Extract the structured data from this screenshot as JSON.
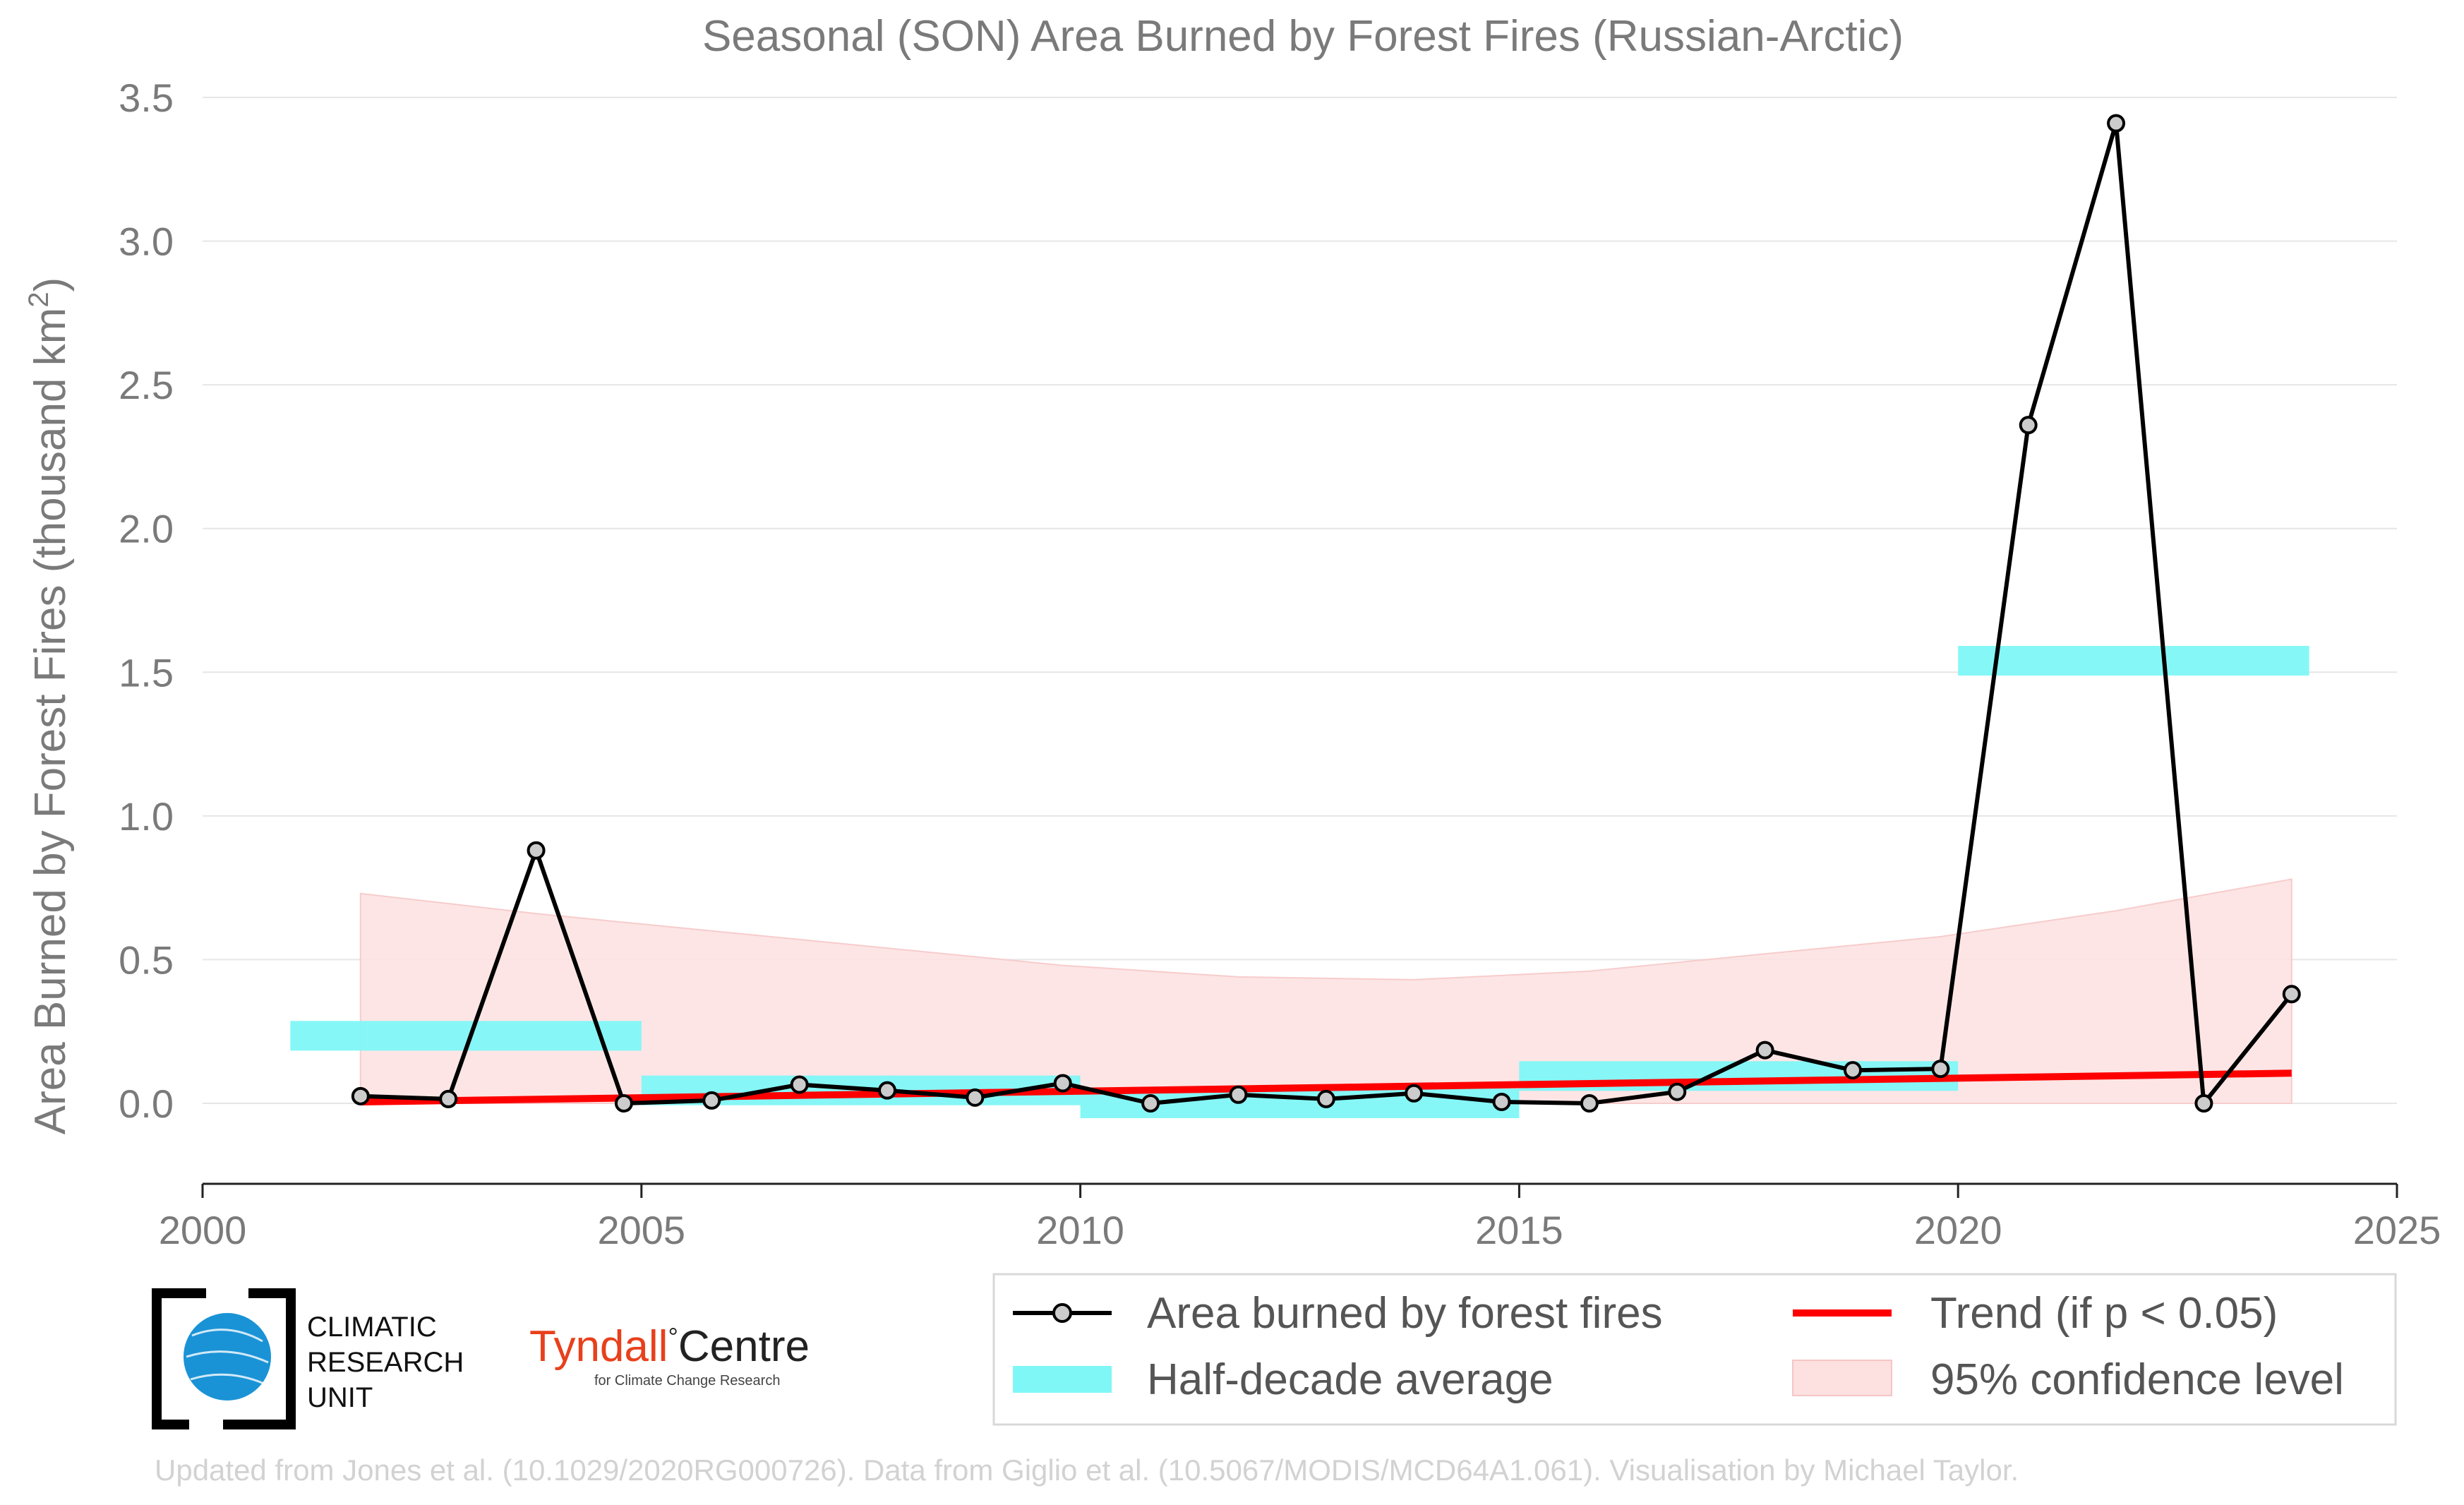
{
  "chart_data": {
    "type": "line",
    "title": "Seasonal (SON) Area Burned by Forest Fires (Russian-Arctic)",
    "ylabel": "Area Burned by Forest Fires (thousand km²)",
    "ylabel_main": "Area Burned by Forest Fires (thousand km",
    "ylabel_sup": "2",
    "ylabel_close": ")",
    "xlim": [
      2000,
      2025
    ],
    "ylim": [
      -0.28,
      3.5
    ],
    "x_ticks": [
      "2000",
      "2005",
      "2010",
      "2015",
      "2020",
      "2025"
    ],
    "y_ticks": [
      "0.0",
      "0.5",
      "1.0",
      "1.5",
      "2.0",
      "2.5",
      "3.0",
      "3.5"
    ],
    "grid": "horizontal",
    "series": [
      {
        "name": "Area burned by forest fires",
        "color": "#000000",
        "marker_fill": "#cccccc",
        "x": [
          2001.8,
          2002.8,
          2003.8,
          2004.8,
          2005.8,
          2006.8,
          2007.8,
          2008.8,
          2009.8,
          2010.8,
          2011.8,
          2012.8,
          2013.8,
          2014.8,
          2015.8,
          2016.8,
          2017.8,
          2018.8,
          2019.8,
          2020.8,
          2021.8,
          2022.8,
          2023.8
        ],
        "values": [
          0.025,
          0.015,
          0.88,
          0.0,
          0.01,
          0.065,
          0.045,
          0.02,
          0.07,
          0.0,
          0.03,
          0.015,
          0.035,
          0.005,
          0.0,
          0.04,
          0.185,
          0.115,
          0.12,
          2.36,
          3.41,
          0.0,
          0.38
        ]
      },
      {
        "name": "Half-decade average",
        "color": "#7ff7f7",
        "segments": [
          {
            "x0": 2001,
            "x1": 2005,
            "y": 0.235
          },
          {
            "x0": 2005,
            "x1": 2010,
            "y": 0.045
          },
          {
            "x0": 2010,
            "x1": 2015,
            "y": 0.0
          },
          {
            "x0": 2015,
            "x1": 2020,
            "y": 0.095
          },
          {
            "x0": 2020,
            "x1": 2024,
            "y": 1.54
          }
        ]
      },
      {
        "name": "Trend (if p < 0.05)",
        "color": "#ff0000",
        "x": [
          2001.8,
          2023.8
        ],
        "values": [
          0.005,
          0.105
        ]
      },
      {
        "name": "95% confidence level",
        "color": "#fde0e0",
        "x": [
          2001.8,
          2003.8,
          2005.8,
          2007.8,
          2009.8,
          2011.8,
          2013.8,
          2015.8,
          2017.8,
          2019.8,
          2021.8,
          2023.8
        ],
        "upper": [
          0.73,
          0.66,
          0.6,
          0.54,
          0.48,
          0.44,
          0.43,
          0.46,
          0.52,
          0.58,
          0.67,
          0.78
        ],
        "lower": [
          0.0,
          0.0,
          0.0,
          0.0,
          0.0,
          0.0,
          0.0,
          0.0,
          0.0,
          0.0,
          0.0,
          0.0
        ]
      }
    ],
    "legend": {
      "placement": "bottom-right",
      "entries": [
        "Area burned by forest fires",
        "Trend (if p < 0.05)",
        "Half-decade average",
        "95% confidence level"
      ]
    }
  },
  "logos": {
    "cru_lines": [
      "CLIMATIC",
      "RESEARCH",
      "UNIT"
    ],
    "tyndall_name": "Tyndall",
    "tyndall_degree": "°",
    "tyndall_centre": "Centre",
    "tyndall_sub": "for Climate Change Research"
  },
  "footer": "Updated from Jones et al. (10.1029/2020RG000726). Data from Giglio et al. (10.5067/MODIS/MCD64A1.061). Visualisation by Michael Taylor."
}
